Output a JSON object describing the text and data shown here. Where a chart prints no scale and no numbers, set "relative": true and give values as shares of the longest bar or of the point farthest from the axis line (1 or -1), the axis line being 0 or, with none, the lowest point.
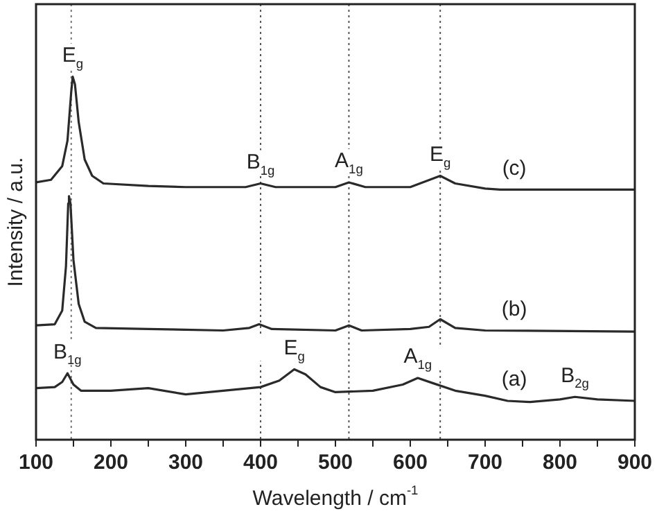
{
  "chart_data": {
    "type": "line",
    "relative": true,
    "xlabel": "Wavelength / cm$^{-1}$",
    "ylabel": "Intensity / a.u.",
    "xlim": [
      100,
      900
    ],
    "xticks": [
      100,
      {
        "value": 150,
        "label": null
      },
      200,
      {
        "value": 250,
        "label": null
      },
      300,
      {
        "value": 350,
        "label": null
      },
      400,
      {
        "value": 450,
        "label": null
      },
      500,
      {
        "value": 550,
        "label": null
      },
      600,
      {
        "value": 650,
        "label": null
      },
      700,
      {
        "value": 750,
        "label": null
      },
      800,
      {
        "value": 850,
        "label": null
      },
      900
    ],
    "grid": false,
    "legend": false,
    "marker": "none",
    "line_style": "solid",
    "series": [
      {
        "color": "#2a2a2a",
        "x": [
          100,
          125,
          135,
          142,
          150,
          160,
          200,
          250,
          300,
          350,
          400,
          425,
          445,
          460,
          480,
          500,
          550,
          590,
          610,
          630,
          660,
          700,
          730,
          760,
          800,
          820,
          850,
          900
        ],
        "values": [
          0.142,
          0.145,
          0.159,
          0.183,
          0.152,
          0.135,
          0.135,
          0.142,
          0.125,
          0.135,
          0.145,
          0.163,
          0.194,
          0.18,
          0.145,
          0.131,
          0.135,
          0.152,
          0.17,
          0.156,
          0.135,
          0.121,
          0.107,
          0.104,
          0.111,
          0.118,
          0.111,
          0.107
        ]
      },
      {
        "color": "#2a2a2a",
        "x": [
          100,
          125,
          135,
          140,
          143,
          144,
          146,
          150,
          157,
          165,
          180,
          250,
          350,
          385,
          398,
          415,
          500,
          518,
          535,
          600,
          625,
          640,
          660,
          700,
          900
        ],
        "values": [
          0.315,
          0.318,
          0.356,
          0.478,
          0.651,
          0.671,
          0.651,
          0.495,
          0.374,
          0.325,
          0.308,
          0.305,
          0.301,
          0.308,
          0.318,
          0.305,
          0.301,
          0.315,
          0.301,
          0.305,
          0.311,
          0.332,
          0.308,
          0.301,
          0.298
        ]
      },
      {
        "color": "#2a2a2a",
        "x": [
          100,
          120,
          135,
          142,
          147,
          149,
          152,
          157,
          165,
          175,
          190,
          250,
          300,
          380,
          400,
          420,
          500,
          518,
          540,
          600,
          640,
          660,
          700,
          720,
          900
        ],
        "values": [
          0.709,
          0.716,
          0.754,
          0.824,
          0.958,
          1.0,
          0.979,
          0.875,
          0.772,
          0.727,
          0.706,
          0.699,
          0.696,
          0.696,
          0.706,
          0.696,
          0.696,
          0.709,
          0.696,
          0.696,
          0.727,
          0.706,
          0.692,
          0.689,
          0.689
        ]
      }
    ],
    "ref_lines": [
      {
        "axis": "x",
        "value": 147,
        "line_style": "dotted",
        "color": "#777777"
      },
      {
        "axis": "x",
        "value": 400,
        "line_style": "dotted",
        "color": "#555555"
      },
      {
        "axis": "x",
        "value": 518,
        "line_style": "dotted",
        "color": "#555555"
      },
      {
        "axis": "x",
        "value": 640,
        "line_style": "dotted",
        "color": "#555555"
      }
    ],
    "annotations": [
      {
        "text": "E$_{g}$",
        "x": 149,
        "y": 1.0
      },
      {
        "text": "B$_{1g}$",
        "x": 400,
        "y": 0.706
      },
      {
        "text": "A$_{1g}$",
        "x": 518,
        "y": 0.709
      },
      {
        "text": "E$_{g}$",
        "x": 640,
        "y": 0.727
      },
      {
        "text": "(c)",
        "x": 739,
        "y": 0.689
      },
      {
        "text": "(b)",
        "x": 739,
        "y": 0.301
      },
      {
        "text": "(a)",
        "x": 739,
        "y": 0.107
      },
      {
        "text": "B$_{1g}$",
        "x": 142,
        "y": 0.183
      },
      {
        "text": "E$_{g}$",
        "x": 445,
        "y": 0.194
      },
      {
        "text": "A$_{1g}$",
        "x": 610,
        "y": 0.17
      },
      {
        "text": "B$_{2g}$",
        "x": 820,
        "y": 0.118
      }
    ]
  }
}
